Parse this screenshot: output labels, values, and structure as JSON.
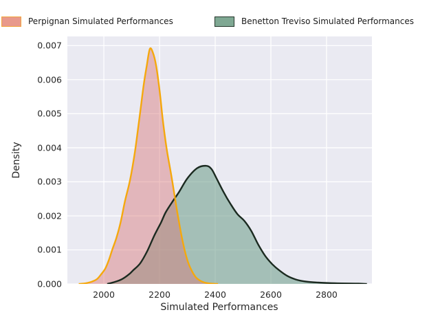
{
  "figure": {
    "background": "#ffffff",
    "axes_background": "#eaeaf2",
    "grid_color": "#ffffff",
    "text_color": "#262626"
  },
  "legend": {
    "position": "top",
    "entries": [
      {
        "label": "Perpignan Simulated Performances",
        "swatch_fill": "#e8998c",
        "swatch_edge": "#f2a43c"
      },
      {
        "label": "Benetton Treviso Simulated Performances",
        "swatch_fill": "#7fa893",
        "swatch_edge": "#25362c"
      }
    ]
  },
  "axes": {
    "xlabel": "Simulated Performances",
    "ylabel": "Density",
    "xtick_labels": [
      "2000",
      "2200",
      "2400",
      "2600",
      "2800"
    ],
    "ytick_labels": [
      "0.000",
      "0.001",
      "0.002",
      "0.003",
      "0.004",
      "0.005",
      "0.006",
      "0.007"
    ]
  },
  "chart_data": {
    "type": "area",
    "subtype": "kde-density",
    "title": "",
    "xlabel": "Simulated Performances",
    "ylabel": "Density",
    "xlim": [
      1869,
      2963
    ],
    "ylim": [
      0,
      0.00727
    ],
    "xticks": [
      2000,
      2200,
      2400,
      2600,
      2800
    ],
    "yticks": [
      0,
      0.001,
      0.002,
      0.003,
      0.004,
      0.005,
      0.006,
      0.007
    ],
    "grid": true,
    "legend_position": "top",
    "series": [
      {
        "name": "Perpignan Simulated Performances",
        "peak_x": 2165,
        "peak_density": 0.0069,
        "line_color": "#f5a80d",
        "line_width": 2.4,
        "fill_color": "#d97777",
        "fill_alpha": 0.45,
        "points": [
          [
            1910,
            0
          ],
          [
            1935,
            2e-05
          ],
          [
            1955,
            6e-05
          ],
          [
            1975,
            0.00014
          ],
          [
            1990,
            0.00028
          ],
          [
            2005,
            0.00045
          ],
          [
            2018,
            0.0007
          ],
          [
            2030,
            0.001
          ],
          [
            2045,
            0.00135
          ],
          [
            2060,
            0.0018
          ],
          [
            2075,
            0.0024
          ],
          [
            2090,
            0.0029
          ],
          [
            2100,
            0.0033
          ],
          [
            2112,
            0.0039
          ],
          [
            2122,
            0.0045
          ],
          [
            2133,
            0.0052
          ],
          [
            2144,
            0.0059
          ],
          [
            2154,
            0.0064
          ],
          [
            2165,
            0.0069
          ],
          [
            2176,
            0.0068
          ],
          [
            2188,
            0.0064
          ],
          [
            2200,
            0.0057
          ],
          [
            2212,
            0.0048
          ],
          [
            2225,
            0.004
          ],
          [
            2240,
            0.0033
          ],
          [
            2252,
            0.0027
          ],
          [
            2264,
            0.0021
          ],
          [
            2277,
            0.0015
          ],
          [
            2290,
            0.001
          ],
          [
            2302,
            0.00065
          ],
          [
            2315,
            0.0004
          ],
          [
            2330,
            0.0002
          ],
          [
            2345,
            0.0001
          ],
          [
            2362,
            4e-05
          ],
          [
            2385,
            1e-05
          ],
          [
            2410,
            0
          ]
        ]
      },
      {
        "name": "Benetton Treviso Simulated Performances",
        "peak_x": 2368,
        "peak_density": 0.00347,
        "line_color": "#1b2a20",
        "line_width": 2.4,
        "fill_color": "#699b87",
        "fill_alpha": 0.55,
        "points": [
          [
            2012,
            0
          ],
          [
            2040,
            6e-05
          ],
          [
            2065,
            0.00014
          ],
          [
            2090,
            0.00028
          ],
          [
            2105,
            0.0004
          ],
          [
            2130,
            0.0006
          ],
          [
            2155,
            0.00095
          ],
          [
            2180,
            0.0014
          ],
          [
            2205,
            0.0018
          ],
          [
            2222,
            0.0021
          ],
          [
            2245,
            0.0024
          ],
          [
            2270,
            0.0027
          ],
          [
            2300,
            0.0031
          ],
          [
            2335,
            0.0034
          ],
          [
            2368,
            0.00347
          ],
          [
            2387,
            0.00337
          ],
          [
            2405,
            0.0031
          ],
          [
            2430,
            0.0027
          ],
          [
            2455,
            0.00235
          ],
          [
            2480,
            0.00205
          ],
          [
            2505,
            0.00185
          ],
          [
            2530,
            0.00155
          ],
          [
            2555,
            0.00115
          ],
          [
            2580,
            0.00082
          ],
          [
            2605,
            0.00058
          ],
          [
            2630,
            0.0004
          ],
          [
            2660,
            0.00023
          ],
          [
            2690,
            0.00013
          ],
          [
            2725,
            7e-05
          ],
          [
            2770,
            4e-05
          ],
          [
            2830,
            2e-05
          ],
          [
            2915,
            1e-05
          ],
          [
            2945,
            0
          ]
        ]
      }
    ]
  }
}
